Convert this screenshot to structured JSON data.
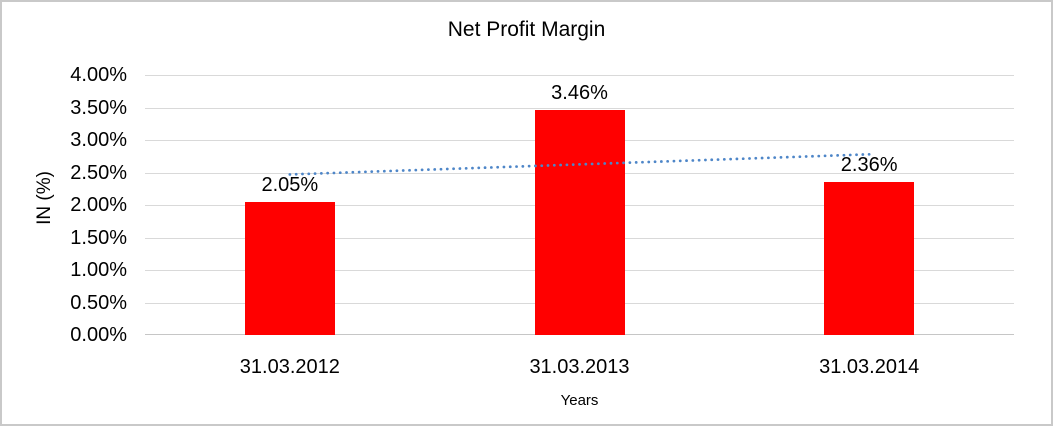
{
  "chart_data": {
    "type": "bar",
    "title": "Net Profit Margin",
    "xlabel": "Years",
    "ylabel": "IN (%)",
    "categories": [
      "31.03.2012",
      "31.03.2013",
      "31.03.2014"
    ],
    "series": [
      {
        "name": "Net Profit Margin",
        "values": [
          2.05,
          3.46,
          2.36
        ],
        "color": "#ff0000"
      }
    ],
    "data_labels": [
      "2.05%",
      "3.46%",
      "2.36%"
    ],
    "ylim": [
      0,
      4
    ],
    "ytick_step": 0.5,
    "ytick_labels": [
      "0.00%",
      "0.50%",
      "1.00%",
      "1.50%",
      "2.00%",
      "2.50%",
      "3.00%",
      "3.50%",
      "4.00%"
    ],
    "grid": "horizontal",
    "gridline_color": "#d9d9d9",
    "axis_line_color": "#c6c6c6",
    "legend": "none",
    "trendline": {
      "type": "linear",
      "style": "dotted",
      "color": "#4e86c8",
      "start_value": 2.47,
      "end_value": 2.78
    }
  }
}
